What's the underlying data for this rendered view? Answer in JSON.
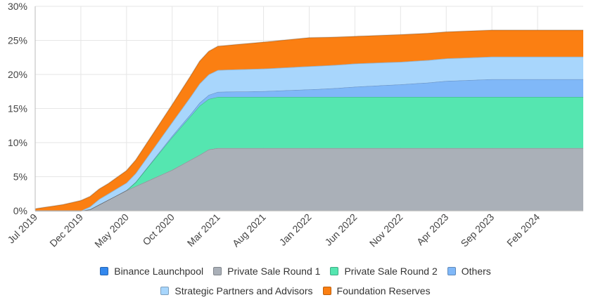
{
  "chart_data": {
    "type": "area",
    "stacked": true,
    "title": "",
    "xlabel": "",
    "ylabel": "",
    "x_range": [
      "2019-07",
      "2024-07"
    ],
    "y_ticks": [
      "0%",
      "5%",
      "10%",
      "15%",
      "20%",
      "25%",
      "30%"
    ],
    "ylim": [
      0,
      30
    ],
    "x_ticks": [
      {
        "date": "2019-07",
        "label": "Jul 2019"
      },
      {
        "date": "2019-12",
        "label": "Dec 2019"
      },
      {
        "date": "2020-05",
        "label": "May 2020"
      },
      {
        "date": "2020-10",
        "label": "Oct 2020"
      },
      {
        "date": "2021-03",
        "label": "Mar 2021"
      },
      {
        "date": "2021-08",
        "label": "Aug 2021"
      },
      {
        "date": "2022-01",
        "label": "Jan 2022"
      },
      {
        "date": "2022-06",
        "label": "Jun 2022"
      },
      {
        "date": "2022-11",
        "label": "Nov 2022"
      },
      {
        "date": "2023-04",
        "label": "Apr 2023"
      },
      {
        "date": "2023-09",
        "label": "Sep 2023"
      },
      {
        "date": "2024-02",
        "label": "Feb 2024"
      }
    ],
    "grid": true,
    "legend_position": "bottom",
    "series": [
      {
        "name": "Binance Launchpool",
        "color": "#3388ee",
        "points": [
          [
            "2019-07",
            0
          ],
          [
            "2024-07",
            0
          ]
        ]
      },
      {
        "name": "Private Sale Round 1",
        "color": "#aab0b8",
        "points": [
          [
            "2019-07",
            0
          ],
          [
            "2019-12",
            0
          ],
          [
            "2020-01",
            0.2
          ],
          [
            "2020-05",
            3.0
          ],
          [
            "2020-10",
            6.0
          ],
          [
            "2021-01",
            8.2
          ],
          [
            "2021-02",
            9.0
          ],
          [
            "2021-03",
            9.2
          ],
          [
            "2024-07",
            9.2
          ]
        ]
      },
      {
        "name": "Private Sale Round 2",
        "color": "#55e6b0",
        "points": [
          [
            "2019-07",
            0
          ],
          [
            "2020-05",
            0
          ],
          [
            "2020-06",
            0.6
          ],
          [
            "2020-10",
            4.8
          ],
          [
            "2021-01",
            7.2
          ],
          [
            "2021-02",
            7.4
          ],
          [
            "2021-03",
            7.5
          ],
          [
            "2024-07",
            7.5
          ]
        ]
      },
      {
        "name": "Others",
        "color": "#80b8f8",
        "points": [
          [
            "2019-07",
            0
          ],
          [
            "2020-06",
            0
          ],
          [
            "2020-12",
            0.3
          ],
          [
            "2021-02",
            0.6
          ],
          [
            "2021-03",
            0.75
          ],
          [
            "2021-08",
            0.85
          ],
          [
            "2021-12",
            1.05
          ],
          [
            "2022-01",
            1.1
          ],
          [
            "2022-04",
            1.3
          ],
          [
            "2022-06",
            1.5
          ],
          [
            "2022-11",
            1.85
          ],
          [
            "2023-02",
            2.1
          ],
          [
            "2023-04",
            2.35
          ],
          [
            "2023-09",
            2.6
          ],
          [
            "2024-02",
            2.6
          ],
          [
            "2024-07",
            2.6
          ]
        ]
      },
      {
        "name": "Strategic Partners and Advisors",
        "color": "#a8d6fc",
        "points": [
          [
            "2019-07",
            0
          ],
          [
            "2019-12",
            0
          ],
          [
            "2020-02",
            0.8
          ],
          [
            "2020-05",
            1.1
          ],
          [
            "2020-10",
            2.0
          ],
          [
            "2021-01",
            2.8
          ],
          [
            "2021-03",
            3.2
          ],
          [
            "2021-08",
            3.3
          ],
          [
            "2022-01",
            3.4
          ],
          [
            "2022-06",
            3.4
          ],
          [
            "2022-11",
            3.3
          ],
          [
            "2023-04",
            3.3
          ],
          [
            "2023-09",
            3.3
          ],
          [
            "2024-07",
            3.3
          ]
        ]
      },
      {
        "name": "Foundation Reserves",
        "color": "#fb7f12",
        "points": [
          [
            "2019-07",
            0.3
          ],
          [
            "2019-10",
            0.9
          ],
          [
            "2019-12",
            1.5
          ],
          [
            "2020-03",
            1.5
          ],
          [
            "2020-05",
            1.8
          ],
          [
            "2020-10",
            2.6
          ],
          [
            "2021-01",
            3.3
          ],
          [
            "2021-03",
            3.5
          ],
          [
            "2021-08",
            3.9
          ],
          [
            "2022-01",
            4.2
          ],
          [
            "2022-06",
            4.0
          ],
          [
            "2022-11",
            4.0
          ],
          [
            "2023-04",
            3.9
          ],
          [
            "2023-09",
            3.9
          ],
          [
            "2024-07",
            3.9
          ]
        ]
      }
    ]
  }
}
